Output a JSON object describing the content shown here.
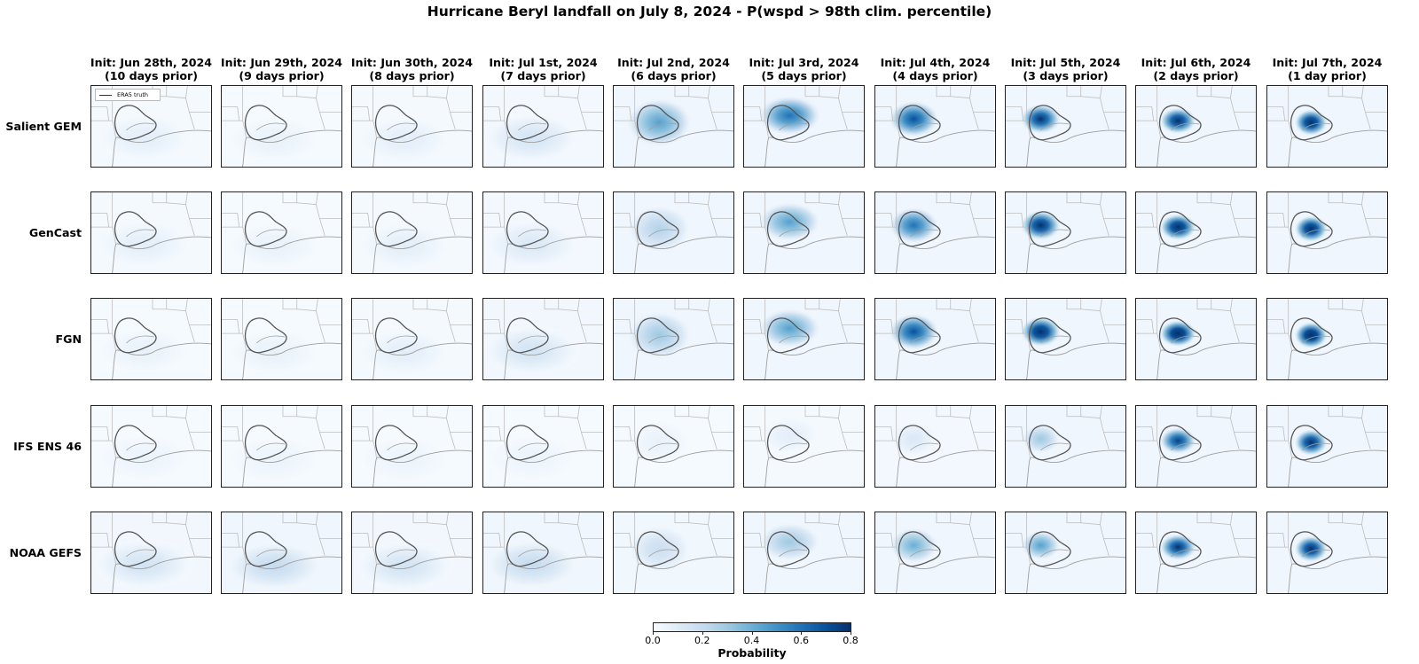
{
  "chart_data": {
    "type": "heatmap",
    "title": "Hurricane Beryl landfall on July 8, 2024 - P(wspd > 98th clim. percentile)",
    "columns": [
      {
        "line1": "Init: Jun 28th, 2024",
        "line2": "(10 days prior)"
      },
      {
        "line1": "Init: Jun 29th, 2024",
        "line2": "(9 days prior)"
      },
      {
        "line1": "Init: Jun 30th, 2024",
        "line2": "(8 days prior)"
      },
      {
        "line1": "Init: Jul 1st, 2024",
        "line2": "(7 days prior)"
      },
      {
        "line1": "Init: Jul 2nd, 2024",
        "line2": "(6 days prior)"
      },
      {
        "line1": "Init: Jul 3rd, 2024",
        "line2": "(5 days prior)"
      },
      {
        "line1": "Init: Jul 4th, 2024",
        "line2": "(4 days prior)"
      },
      {
        "line1": "Init: Jul 5th, 2024",
        "line2": "(3 days prior)"
      },
      {
        "line1": "Init: Jul 6th, 2024",
        "line2": "(2 days prior)"
      },
      {
        "line1": "Init: Jul 7th, 2024",
        "line2": "(1 day prior)"
      }
    ],
    "rows": [
      "Salient GEM",
      "GenCast",
      "FGN",
      "IFS ENS 46",
      "NOAA GEFS"
    ],
    "legend_label": "ERA5 truth",
    "legend_placement": "top-left of first panel",
    "peak_probability": [
      [
        0.08,
        0.06,
        0.08,
        0.14,
        0.45,
        0.6,
        0.7,
        0.8,
        0.85,
        0.9
      ],
      [
        0.08,
        0.06,
        0.08,
        0.12,
        0.25,
        0.45,
        0.6,
        0.85,
        0.9,
        0.9
      ],
      [
        0.06,
        0.06,
        0.08,
        0.15,
        0.3,
        0.45,
        0.7,
        0.9,
        0.95,
        0.95
      ],
      [
        0.05,
        0.05,
        0.05,
        0.05,
        0.06,
        0.08,
        0.12,
        0.3,
        0.75,
        0.85
      ],
      [
        0.15,
        0.2,
        0.15,
        0.2,
        0.18,
        0.3,
        0.4,
        0.45,
        0.8,
        0.85
      ]
    ],
    "colorbar": {
      "label": "Probability",
      "range": [
        0.0,
        0.8
      ],
      "ticks": [
        "0.0",
        "0.2",
        "0.4",
        "0.6",
        "0.8"
      ],
      "colormap": [
        "#f7fbff",
        "#deebf7",
        "#c6dbef",
        "#9ecae1",
        "#6baed6",
        "#4292c6",
        "#2171b5",
        "#08519c",
        "#08306b"
      ]
    }
  }
}
